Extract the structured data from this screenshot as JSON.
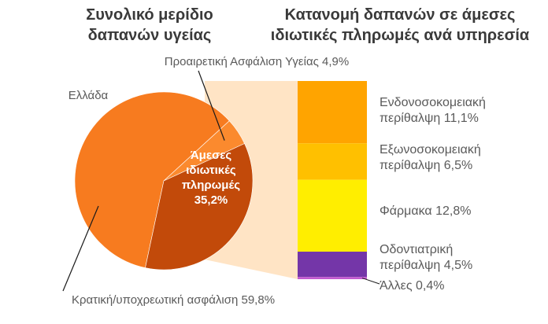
{
  "chart_data": [
    {
      "type": "pie",
      "title": "Συνολικό μερίδιο δαπανών υγείας",
      "region_label": "Ελλάδα",
      "slices": [
        {
          "label": "Κρατική/υποχρεωτική ασφάλιση",
          "value": 59.8,
          "text": "Κρατική/υποχρεωτική ασφάλιση 59,8%",
          "color": "#F77B1F"
        },
        {
          "label": "Προαιρετική Ασφάλιση Υγείας",
          "value": 4.9,
          "text": "Προαιρετική Ασφάλιση Υγείας 4,9%",
          "color": "#FB8A2E"
        },
        {
          "label": "Άμεσες ιδιωτικές πληρωμές",
          "value": 35.2,
          "text_lines": [
            "Άμεσες",
            "ιδιωτικές",
            "πληρωμές",
            "35,2%"
          ],
          "color": "#C24A0A"
        }
      ]
    },
    {
      "type": "bar",
      "title": "Κατανομή δαπανών σε άμεσες ιδιωτικές πληρωμές ανά υπηρεσία",
      "stacked": true,
      "series": [
        {
          "name": "Ενδονοσοκομειακή περίθαλψη",
          "value": 11.1,
          "label_lines": [
            "Ενδονοσοκομειακή",
            "περίθαλψη 11,1%"
          ],
          "color": "#FFA400"
        },
        {
          "name": "Εξωνοσοκομειακή περίθαλψη",
          "value": 6.5,
          "label_lines": [
            "Εξωνοσοκομειακή",
            "περίθαλψη 6,5%"
          ],
          "color": "#FFC000"
        },
        {
          "name": "Φάρμακα",
          "value": 12.8,
          "label_lines": [
            "Φάρμακα 12,8%"
          ],
          "color": "#FFEE00"
        },
        {
          "name": "Οδοντιατρική περίθαλψη",
          "value": 4.5,
          "label_lines": [
            "Οδοντιατρική",
            "περίθαλψη 4,5%"
          ],
          "color": "#7436A8"
        },
        {
          "name": "Άλλες",
          "value": 0.4,
          "label_lines": [
            "Άλλες 0,4%"
          ],
          "color": "#C25BD0"
        }
      ]
    }
  ]
}
